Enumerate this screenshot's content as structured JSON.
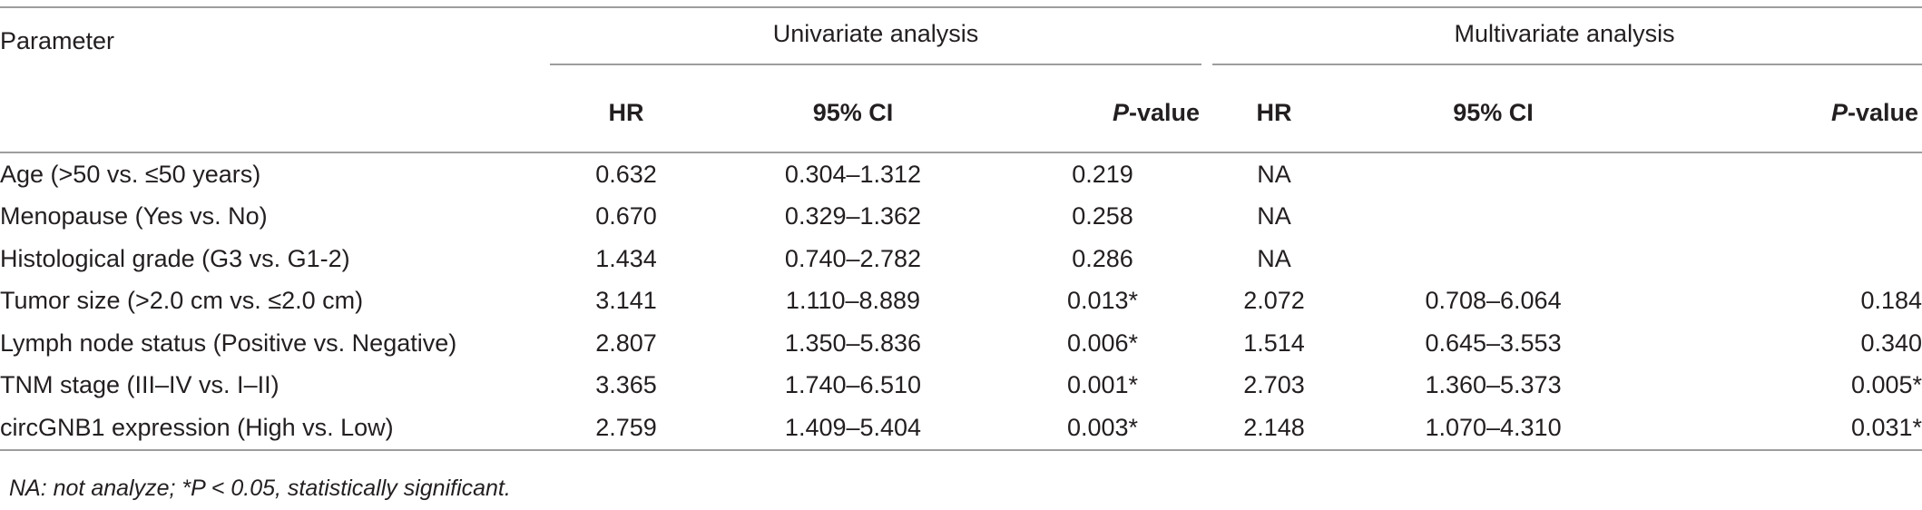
{
  "table": {
    "header": {
      "parameter": "Parameter",
      "univariate": "Univariate analysis",
      "multivariate": "Multivariate analysis",
      "hr": "HR",
      "ci": "95% CI",
      "p_italic": "P",
      "p_rest": "-value"
    },
    "rows": [
      {
        "parameter": "Age (>50 vs. ≤50 years)",
        "u_hr": "0.632",
        "u_ci": "0.304–1.312",
        "u_p": "0.219",
        "m_hr": "NA",
        "m_ci": "",
        "m_p": ""
      },
      {
        "parameter": "Menopause (Yes vs. No)",
        "u_hr": "0.670",
        "u_ci": "0.329–1.362",
        "u_p": "0.258",
        "m_hr": "NA",
        "m_ci": "",
        "m_p": ""
      },
      {
        "parameter": "Histological grade (G3 vs. G1-2)",
        "u_hr": "1.434",
        "u_ci": "0.740–2.782",
        "u_p": "0.286",
        "m_hr": "NA",
        "m_ci": "",
        "m_p": ""
      },
      {
        "parameter": "Tumor size (>2.0 cm vs. ≤2.0 cm)",
        "u_hr": "3.141",
        "u_ci": "1.110–8.889",
        "u_p": "0.013*",
        "m_hr": "2.072",
        "m_ci": "0.708–6.064",
        "m_p": "0.184"
      },
      {
        "parameter": "Lymph node status (Positive vs. Negative)",
        "u_hr": "2.807",
        "u_ci": "1.350–5.836",
        "u_p": "0.006*",
        "m_hr": "1.514",
        "m_ci": "0.645–3.553",
        "m_p": "0.340"
      },
      {
        "parameter": "TNM stage (III–IV vs. I–II)",
        "u_hr": "3.365",
        "u_ci": "1.740–6.510",
        "u_p": "0.001*",
        "m_hr": "2.703",
        "m_ci": "1.360–5.373",
        "m_p": "0.005*"
      },
      {
        "parameter": "circGNB1 expression (High vs. Low)",
        "u_hr": "2.759",
        "u_ci": "1.409–5.404",
        "u_p": "0.003*",
        "m_hr": "2.148",
        "m_ci": "1.070–4.310",
        "m_p": "0.031*"
      }
    ]
  },
  "footnote": "NA: not analyze; *P < 0.05, statistically significant."
}
